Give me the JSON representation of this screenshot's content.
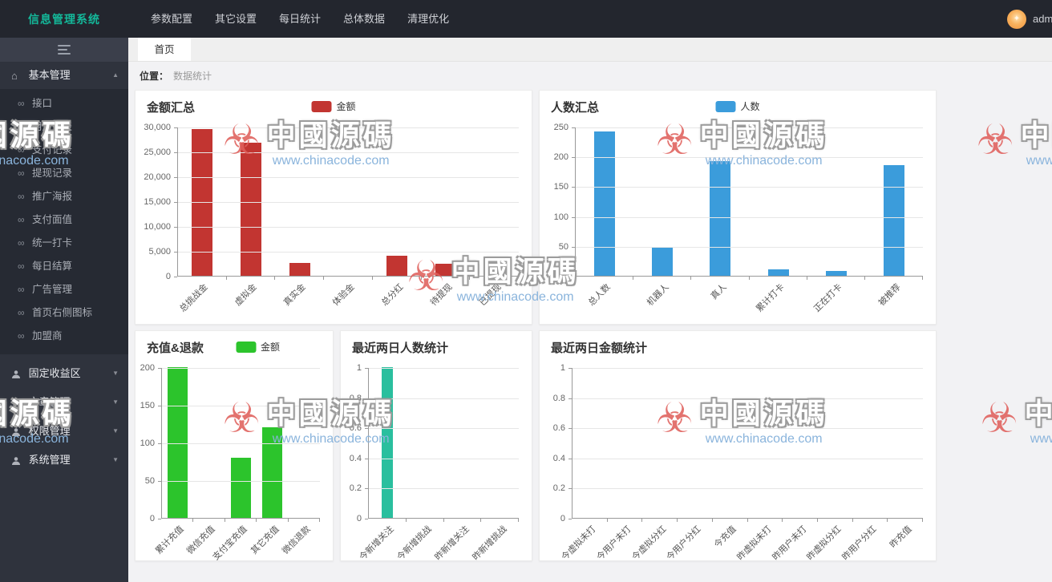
{
  "app": {
    "logo": "信息管理系统",
    "user": "admin"
  },
  "navbar": {
    "items": [
      "参数配置",
      "其它设置",
      "每日统计",
      "总体数据",
      "清理优化"
    ]
  },
  "tabs": {
    "home": "首页"
  },
  "breadcrumb": {
    "label": "位置：",
    "current": "数据统计"
  },
  "sidebar": {
    "groups": [
      {
        "label": "基本管理",
        "children": [
          "接口",
          "用户列表",
          "支付记录",
          "提现记录",
          "推广海报",
          "支付面值",
          "统一打卡",
          "每日结算",
          "广告管理",
          "首页右侧图标",
          "加盟商"
        ]
      },
      {
        "label": "固定收益区"
      },
      {
        "label": "文章管理"
      },
      {
        "label": "权限管理"
      },
      {
        "label": "系统管理"
      }
    ]
  },
  "icons": {
    "home": "⌂",
    "flag": "⚑",
    "link": "∞",
    "caret_up": "▲",
    "caret_down": "▼",
    "avatar_star": "✦",
    "wm_logo": "☣"
  },
  "watermark": {
    "text": "中國源碼",
    "url": "www.chinacode.com"
  },
  "chart_data": [
    {
      "type": "bar",
      "title": "金额汇总",
      "legend": "金额",
      "color": "#c23531",
      "categories": [
        "总挑战金",
        "虚拟金",
        "真实金",
        "体验金",
        "总分红",
        "待提现",
        "已提现"
      ],
      "values": [
        29500,
        26800,
        2600,
        0,
        4100,
        2400,
        800
      ],
      "xlabel": "",
      "ylabel": "",
      "ylim": [
        0,
        30000
      ],
      "yticks": [
        0,
        5000,
        10000,
        15000,
        20000,
        25000,
        30000
      ],
      "grid": true,
      "legend_position": "top-center"
    },
    {
      "type": "bar",
      "title": "人数汇总",
      "legend": "人数",
      "color": "#3b9cdb",
      "categories": [
        "总人数",
        "机器人",
        "真人",
        "累计打卡",
        "正在打卡",
        "被推荐"
      ],
      "values": [
        242,
        47,
        192,
        11,
        8,
        186
      ],
      "xlabel": "",
      "ylabel": "",
      "ylim": [
        0,
        250
      ],
      "yticks": [
        0,
        50,
        100,
        150,
        200,
        250
      ],
      "grid": true,
      "legend_position": "top-center"
    },
    {
      "type": "bar",
      "title": "充值&退款",
      "legend": "金额",
      "color": "#2cc42c",
      "categories": [
        "累计充值",
        "微信充值",
        "支付宝充值",
        "其它充值",
        "微信退款"
      ],
      "values": [
        200,
        0,
        80,
        120,
        0
      ],
      "xlabel": "",
      "ylabel": "",
      "ylim": [
        0,
        200
      ],
      "yticks": [
        0,
        50,
        100,
        150,
        200
      ],
      "grid": true,
      "legend_position": "top-center"
    },
    {
      "type": "bar",
      "title": "最近两日人数统计",
      "legend": null,
      "color": "#2abf9e",
      "categories": [
        "今新增关注",
        "今新增挑战",
        "昨新增关注",
        "昨新增挑战"
      ],
      "values": [
        1,
        0,
        0,
        0
      ],
      "xlabel": "",
      "ylabel": "",
      "ylim": [
        0,
        1
      ],
      "yticks": [
        0,
        0.2,
        0.4,
        0.6,
        0.8,
        1
      ],
      "grid": true,
      "legend_position": "none"
    },
    {
      "type": "bar",
      "title": "最近两日金额统计",
      "legend": null,
      "color": "#3b9cdb",
      "categories": [
        "今虚拟未打",
        "今用户未打",
        "今虚拟分红",
        "今用户分红",
        "今充值",
        "昨虚拟未打",
        "昨用户未打",
        "昨虚拟分红",
        "昨用户分红",
        "昨充值"
      ],
      "values": [
        0,
        0,
        0,
        0,
        0,
        0,
        0,
        0,
        0,
        0
      ],
      "xlabel": "",
      "ylabel": "",
      "ylim": [
        0,
        1
      ],
      "yticks": [
        0,
        0.2,
        0.4,
        0.6,
        0.8,
        1
      ],
      "grid": true,
      "legend_position": "none"
    }
  ]
}
